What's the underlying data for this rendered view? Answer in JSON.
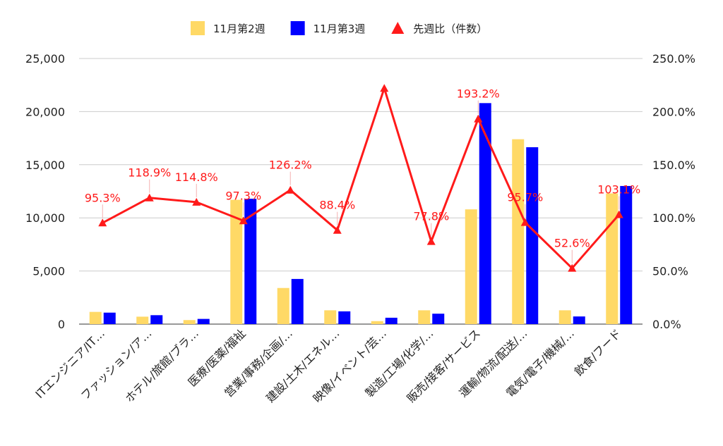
{
  "chart_data": {
    "type": "bar",
    "categories": [
      "ITエンジニア/IT…",
      "ファッション/ア…",
      "ホテル/旅館/ブラ…",
      "医療/医薬/福祉",
      "営業/事務/企画/…",
      "建設/土木/エネル…",
      "映像/イベント/芸…",
      "製造/工場/化学/…",
      "販売/接客/サービス",
      "運輸/物流/配送/…",
      "電気/電子/機械/…",
      "飲食/フード"
    ],
    "series": [
      {
        "name": "11月第2週",
        "type": "bar",
        "axis": "left",
        "color": "#ffd966",
        "values": [
          1150,
          700,
          380,
          11700,
          3400,
          1300,
          280,
          1300,
          10800,
          17400,
          1300,
          12300
        ]
      },
      {
        "name": "11月第3週",
        "type": "bar",
        "axis": "left",
        "color": "#0000ff",
        "values": [
          1080,
          840,
          490,
          11800,
          4250,
          1200,
          600,
          980,
          20800,
          16650,
          720,
          13000
        ]
      },
      {
        "name": "先週比（件数）",
        "type": "line",
        "axis": "right",
        "color": "#ff1a1a",
        "values": [
          95.3,
          118.9,
          114.8,
          97.3,
          126.2,
          88.4,
          222.0,
          77.8,
          193.2,
          95.7,
          52.6,
          103.1
        ],
        "labels": [
          "95.3%",
          "118.9%",
          "114.8%",
          "97.3%",
          "126.2%",
          "88.4%",
          "",
          "77.8%",
          "193.2%",
          "95.7%",
          "52.6%",
          "103.1%"
        ]
      }
    ],
    "y_left": {
      "min": 0,
      "max": 25000,
      "ticks": [
        0,
        5000,
        10000,
        15000,
        20000,
        25000
      ],
      "tick_labels": [
        "0",
        "5,000",
        "10,000",
        "15,000",
        "20,000",
        "25,000"
      ]
    },
    "y_right": {
      "min": 0,
      "max": 250,
      "ticks": [
        0,
        50,
        100,
        150,
        200,
        250
      ],
      "tick_labels": [
        "0.0%",
        "50.0%",
        "100.0%",
        "150.0%",
        "200.0%",
        "250.0%"
      ]
    },
    "grid": true,
    "legend_position": "top-center",
    "title": "",
    "xlabel": "",
    "ylabel": ""
  }
}
